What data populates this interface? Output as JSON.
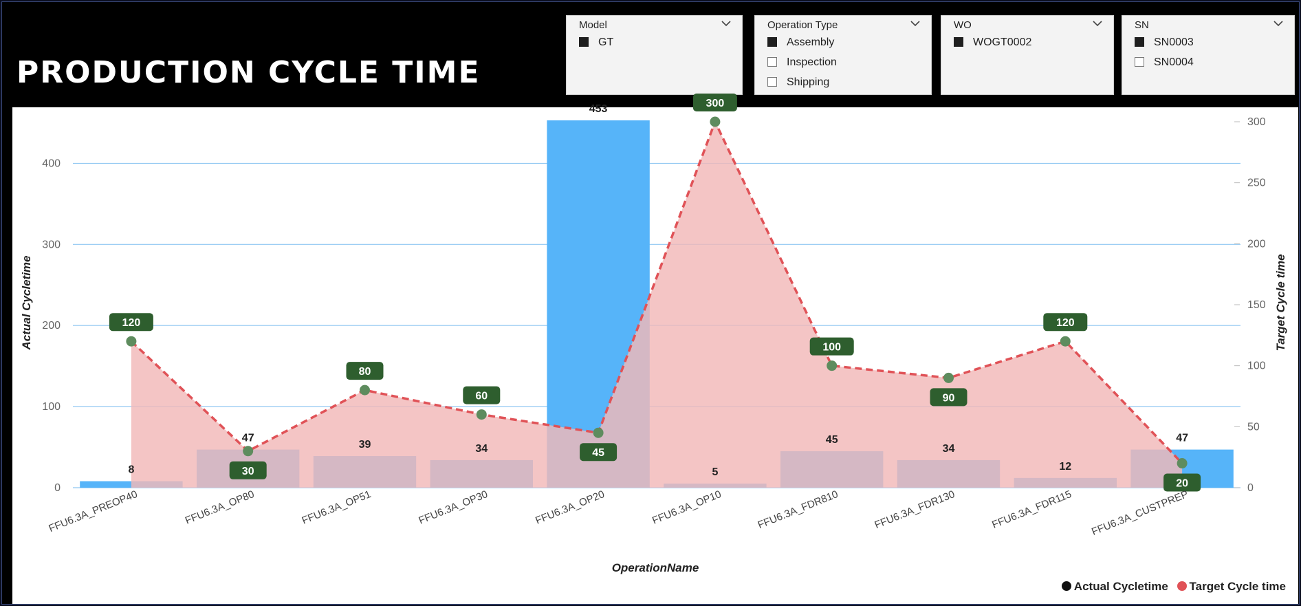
{
  "page_title": "PRODUCTION CYCLE TIME",
  "slicers": [
    {
      "title": "Model",
      "options": [
        {
          "label": "GT",
          "checked": true
        }
      ]
    },
    {
      "title": "Operation Type",
      "options": [
        {
          "label": "Assembly",
          "checked": true
        },
        {
          "label": "Inspection",
          "checked": false
        },
        {
          "label": "Shipping",
          "checked": false
        }
      ]
    },
    {
      "title": "WO",
      "options": [
        {
          "label": "WOGT0002",
          "checked": true
        }
      ]
    },
    {
      "title": "SN",
      "options": [
        {
          "label": "SN0003",
          "checked": true
        },
        {
          "label": "SN0004",
          "checked": false
        }
      ]
    }
  ],
  "colors": {
    "bar": "#56b4f9",
    "target_line": "#e05257",
    "target_area": "#f2b8b8",
    "marker": "#5e8c5e",
    "label_bg": "#2e5e2e",
    "grid": "#8fc7f2"
  },
  "legend": {
    "actual": "Actual Cycletime",
    "target": "Target Cycle time",
    "actual_color": "#111111",
    "target_color": "#e05257"
  },
  "chart_data": {
    "type": "bar",
    "xlabel": "OperationName",
    "ylabel": "Actual Cycletime",
    "y2label": "Target Cycle time",
    "ylim": [
      0,
      475
    ],
    "y2lim": [
      0,
      300
    ],
    "yticks": [
      0,
      100,
      200,
      300,
      400
    ],
    "y2ticks": [
      0,
      50,
      100,
      150,
      200,
      250,
      300
    ],
    "categories": [
      "FFU6.3A_PREOP40",
      "FFU6.3A_OP80",
      "FFU6.3A_OP51",
      "FFU6.3A_OP30",
      "FFU6.3A_OP20",
      "FFU6.3A_OP10",
      "FFU6.3A_FDR810",
      "FFU6.3A_FDR130",
      "FFU6.3A_FDR115",
      "FFU6.3A_CUSTPREP"
    ],
    "series": [
      {
        "name": "Actual Cycletime",
        "type": "bar",
        "axis": "left",
        "values": [
          8,
          47,
          39,
          34,
          453,
          5,
          45,
          34,
          12,
          47
        ]
      },
      {
        "name": "Target Cycle time",
        "type": "area-line",
        "axis": "right",
        "values": [
          120,
          30,
          80,
          60,
          45,
          300,
          100,
          90,
          120,
          20
        ]
      }
    ],
    "grid": true,
    "legend_position": "bottom-right"
  }
}
